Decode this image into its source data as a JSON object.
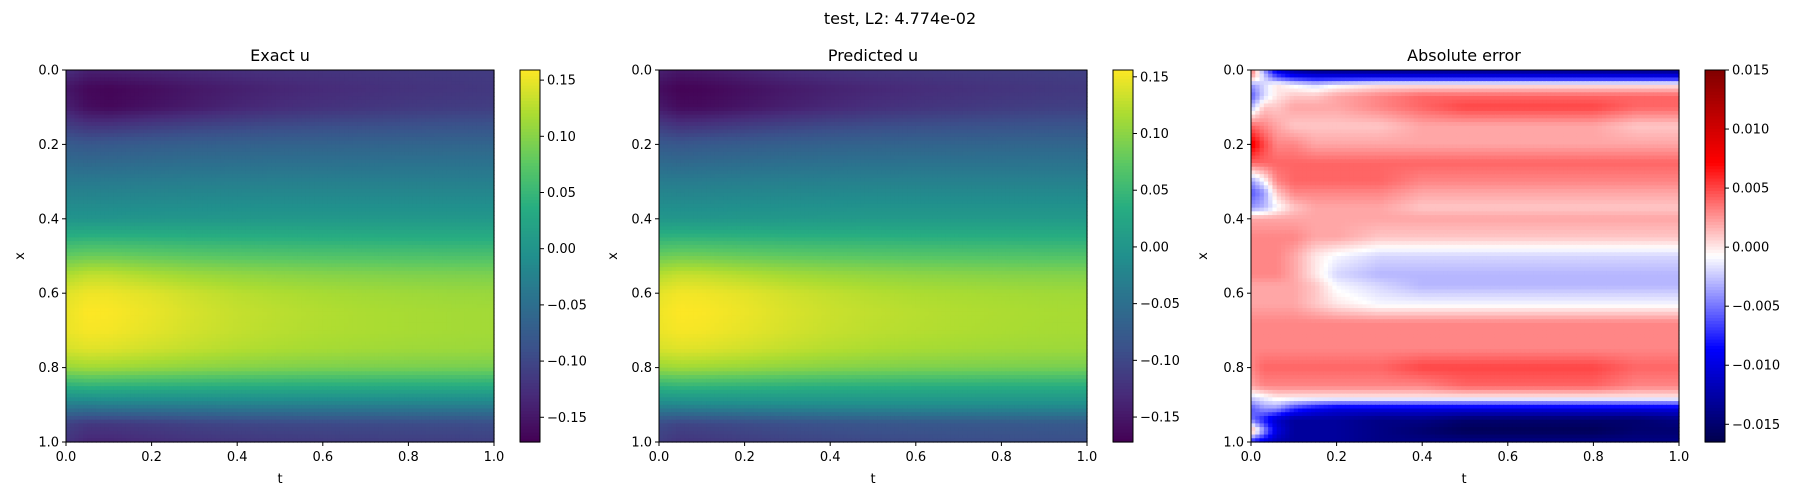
{
  "figure": {
    "suptitle": "test, L2: 4.774e-02"
  },
  "chart_data": [
    {
      "type": "heatmap",
      "title": "Exact u",
      "xlabel": "t",
      "ylabel": "x",
      "xlim": [
        0.0,
        1.0
      ],
      "ylim": [
        1.0,
        0.0
      ],
      "x_ticks": [
        "0.0",
        "0.2",
        "0.4",
        "0.6",
        "0.8",
        "1.0"
      ],
      "y_ticks": [
        "0.0",
        "0.2",
        "0.4",
        "0.6",
        "0.8",
        "1.0"
      ],
      "colormap": "viridis",
      "clim": [
        -0.172,
        0.159
      ],
      "colorbar_ticks": [
        0.15,
        0.1,
        0.05,
        0.0,
        -0.05,
        -0.1,
        -0.15
      ],
      "colorbar_tick_labels": [
        "0.15",
        "0.10",
        "0.05",
        "0.00",
        "−0.05",
        "−0.10",
        "−0.15"
      ],
      "x_sample": [
        0.0,
        0.05,
        0.1,
        0.2,
        0.3,
        0.4,
        0.5,
        0.6,
        0.7,
        0.8,
        0.9,
        1.0
      ],
      "y_sample": [
        0.0,
        0.05,
        0.1,
        0.15,
        0.2,
        0.3,
        0.4,
        0.5,
        0.55,
        0.6,
        0.65,
        0.7,
        0.75,
        0.8,
        0.85,
        0.9,
        0.95,
        1.0
      ],
      "z": [
        [
          -0.125,
          -0.14,
          -0.14,
          -0.135,
          -0.13,
          -0.125,
          -0.122,
          -0.12,
          -0.118,
          -0.116,
          -0.114,
          -0.112
        ],
        [
          -0.15,
          -0.165,
          -0.168,
          -0.16,
          -0.15,
          -0.142,
          -0.135,
          -0.13,
          -0.126,
          -0.122,
          -0.119,
          -0.116
        ],
        [
          -0.14,
          -0.16,
          -0.165,
          -0.155,
          -0.145,
          -0.135,
          -0.128,
          -0.123,
          -0.119,
          -0.115,
          -0.112,
          -0.11
        ],
        [
          -0.11,
          -0.12,
          -0.12,
          -0.112,
          -0.105,
          -0.1,
          -0.096,
          -0.093,
          -0.091,
          -0.089,
          -0.087,
          -0.086
        ],
        [
          -0.075,
          -0.08,
          -0.078,
          -0.074,
          -0.07,
          -0.068,
          -0.066,
          -0.065,
          -0.064,
          -0.063,
          -0.062,
          -0.062
        ],
        [
          -0.035,
          -0.035,
          -0.034,
          -0.032,
          -0.03,
          -0.029,
          -0.028,
          -0.028,
          -0.028,
          -0.028,
          -0.028,
          -0.028
        ],
        [
          0.0,
          0.0,
          0.0,
          0.002,
          0.003,
          0.004,
          0.005,
          0.005,
          0.005,
          0.005,
          0.005,
          0.005
        ],
        [
          0.08,
          0.085,
          0.085,
          0.08,
          0.075,
          0.072,
          0.07,
          0.068,
          0.067,
          0.066,
          0.065,
          0.065
        ],
        [
          0.12,
          0.13,
          0.13,
          0.12,
          0.112,
          0.107,
          0.103,
          0.1,
          0.098,
          0.096,
          0.095,
          0.094
        ],
        [
          0.145,
          0.152,
          0.152,
          0.145,
          0.135,
          0.127,
          0.122,
          0.118,
          0.115,
          0.113,
          0.111,
          0.11
        ],
        [
          0.15,
          0.159,
          0.158,
          0.15,
          0.14,
          0.132,
          0.127,
          0.123,
          0.12,
          0.118,
          0.116,
          0.115
        ],
        [
          0.15,
          0.156,
          0.155,
          0.147,
          0.138,
          0.131,
          0.126,
          0.122,
          0.12,
          0.118,
          0.116,
          0.115
        ],
        [
          0.14,
          0.145,
          0.144,
          0.137,
          0.13,
          0.124,
          0.12,
          0.117,
          0.115,
          0.113,
          0.112,
          0.111
        ],
        [
          0.11,
          0.115,
          0.114,
          0.109,
          0.104,
          0.1,
          0.097,
          0.095,
          0.094,
          0.093,
          0.092,
          0.091
        ],
        [
          0.04,
          0.045,
          0.044,
          0.042,
          0.04,
          0.038,
          0.037,
          0.036,
          0.036,
          0.035,
          0.035,
          0.035
        ],
        [
          -0.03,
          -0.03,
          -0.028,
          -0.028,
          -0.027,
          -0.026,
          -0.026,
          -0.026,
          -0.026,
          -0.026,
          -0.026,
          -0.026
        ],
        [
          -0.105,
          -0.115,
          -0.115,
          -0.11,
          -0.104,
          -0.1,
          -0.098,
          -0.096,
          -0.095,
          -0.094,
          -0.093,
          -0.092
        ],
        [
          -0.12,
          -0.135,
          -0.135,
          -0.128,
          -0.122,
          -0.118,
          -0.115,
          -0.113,
          -0.111,
          -0.11,
          -0.109,
          -0.108
        ]
      ]
    },
    {
      "type": "heatmap",
      "title": "Predicted u",
      "xlabel": "t",
      "ylabel": "x",
      "xlim": [
        0.0,
        1.0
      ],
      "ylim": [
        1.0,
        0.0
      ],
      "x_ticks": [
        "0.0",
        "0.2",
        "0.4",
        "0.6",
        "0.8",
        "1.0"
      ],
      "y_ticks": [
        "0.0",
        "0.2",
        "0.4",
        "0.6",
        "0.8",
        "1.0"
      ],
      "colormap": "viridis",
      "clim": [
        -0.172,
        0.156
      ],
      "colorbar_ticks": [
        0.15,
        0.1,
        0.05,
        0.0,
        -0.05,
        -0.1,
        -0.15
      ],
      "colorbar_tick_labels": [
        "0.15",
        "0.10",
        "0.05",
        "0.00",
        "−0.05",
        "−0.10",
        "−0.15"
      ],
      "x_sample": [
        0.0,
        0.05,
        0.1,
        0.2,
        0.3,
        0.4,
        0.5,
        0.6,
        0.7,
        0.8,
        0.9,
        1.0
      ],
      "y_sample": [
        0.0,
        0.05,
        0.1,
        0.15,
        0.2,
        0.3,
        0.4,
        0.5,
        0.55,
        0.6,
        0.65,
        0.7,
        0.75,
        0.8,
        0.85,
        0.9,
        0.95,
        1.0
      ],
      "z": [
        [
          -0.14,
          -0.15,
          -0.148,
          -0.138,
          -0.128,
          -0.122,
          -0.118,
          -0.116,
          -0.114,
          -0.112,
          -0.11,
          -0.108
        ],
        [
          -0.16,
          -0.17,
          -0.168,
          -0.158,
          -0.148,
          -0.14,
          -0.134,
          -0.129,
          -0.125,
          -0.121,
          -0.118,
          -0.115
        ],
        [
          -0.148,
          -0.162,
          -0.162,
          -0.152,
          -0.142,
          -0.133,
          -0.126,
          -0.121,
          -0.117,
          -0.113,
          -0.11,
          -0.108
        ],
        [
          -0.112,
          -0.122,
          -0.12,
          -0.112,
          -0.105,
          -0.099,
          -0.095,
          -0.092,
          -0.09,
          -0.088,
          -0.086,
          -0.085
        ],
        [
          -0.078,
          -0.082,
          -0.079,
          -0.075,
          -0.071,
          -0.068,
          -0.066,
          -0.065,
          -0.064,
          -0.063,
          -0.062,
          -0.062
        ],
        [
          -0.033,
          -0.034,
          -0.033,
          -0.031,
          -0.029,
          -0.028,
          -0.027,
          -0.027,
          -0.027,
          -0.027,
          -0.027,
          -0.027
        ],
        [
          0.002,
          0.001,
          0.001,
          0.003,
          0.004,
          0.005,
          0.006,
          0.006,
          0.006,
          0.006,
          0.006,
          0.006
        ],
        [
          0.082,
          0.086,
          0.085,
          0.08,
          0.076,
          0.073,
          0.071,
          0.069,
          0.068,
          0.067,
          0.066,
          0.066
        ],
        [
          0.122,
          0.13,
          0.129,
          0.121,
          0.113,
          0.108,
          0.104,
          0.101,
          0.099,
          0.097,
          0.096,
          0.095
        ],
        [
          0.145,
          0.151,
          0.15,
          0.144,
          0.135,
          0.128,
          0.122,
          0.118,
          0.116,
          0.114,
          0.112,
          0.111
        ],
        [
          0.15,
          0.156,
          0.155,
          0.148,
          0.139,
          0.132,
          0.127,
          0.123,
          0.12,
          0.118,
          0.116,
          0.115
        ],
        [
          0.148,
          0.153,
          0.152,
          0.145,
          0.137,
          0.13,
          0.125,
          0.122,
          0.119,
          0.117,
          0.115,
          0.114
        ],
        [
          0.138,
          0.142,
          0.141,
          0.135,
          0.128,
          0.122,
          0.118,
          0.115,
          0.113,
          0.111,
          0.11,
          0.109
        ],
        [
          0.108,
          0.112,
          0.111,
          0.107,
          0.102,
          0.098,
          0.095,
          0.093,
          0.092,
          0.091,
          0.09,
          0.089
        ],
        [
          0.042,
          0.046,
          0.045,
          0.043,
          0.041,
          0.039,
          0.038,
          0.037,
          0.037,
          0.036,
          0.036,
          0.036
        ],
        [
          -0.02,
          -0.018,
          -0.016,
          -0.014,
          -0.012,
          -0.011,
          -0.01,
          -0.01,
          -0.01,
          -0.01,
          -0.01,
          -0.01
        ],
        [
          -0.095,
          -0.102,
          -0.1,
          -0.095,
          -0.09,
          -0.086,
          -0.083,
          -0.081,
          -0.08,
          -0.079,
          -0.078,
          -0.078
        ],
        [
          -0.11,
          -0.12,
          -0.118,
          -0.112,
          -0.106,
          -0.102,
          -0.099,
          -0.097,
          -0.095,
          -0.094,
          -0.093,
          -0.092
        ]
      ]
    },
    {
      "type": "heatmap",
      "title": "Absolute error",
      "xlabel": "t",
      "ylabel": "x",
      "xlim": [
        0.0,
        1.0
      ],
      "ylim": [
        1.0,
        0.0
      ],
      "x_ticks": [
        "0.0",
        "0.2",
        "0.4",
        "0.6",
        "0.8",
        "1.0"
      ],
      "y_ticks": [
        "0.0",
        "0.2",
        "0.4",
        "0.6",
        "0.8",
        "1.0"
      ],
      "colormap": "seismic",
      "clim": [
        -0.0165,
        0.015
      ],
      "colorbar_ticks": [
        0.015,
        0.01,
        0.005,
        0.0,
        -0.005,
        -0.01,
        -0.015
      ],
      "colorbar_tick_labels": [
        "0.015",
        "0.010",
        "0.005",
        "0.000",
        "−0.005",
        "−0.010",
        "−0.015"
      ],
      "x_sample": [
        0.0,
        0.03,
        0.06,
        0.1,
        0.15,
        0.2,
        0.3,
        0.4,
        0.5,
        0.6,
        0.7,
        0.8,
        0.9,
        1.0
      ],
      "y_sample": [
        0.0,
        0.02,
        0.04,
        0.07,
        0.1,
        0.15,
        0.2,
        0.25,
        0.3,
        0.33,
        0.37,
        0.4,
        0.45,
        0.5,
        0.55,
        0.58,
        0.63,
        0.68,
        0.75,
        0.8,
        0.85,
        0.88,
        0.91,
        0.94,
        0.97,
        1.0
      ],
      "z": [
        [
          0.004,
          -0.004,
          -0.01,
          -0.013,
          -0.014,
          -0.014,
          -0.014,
          -0.014,
          -0.014,
          -0.014,
          -0.014,
          -0.014,
          -0.014,
          -0.014
        ],
        [
          0.002,
          -0.002,
          -0.006,
          -0.008,
          -0.009,
          -0.009,
          -0.009,
          -0.009,
          -0.009,
          -0.009,
          -0.009,
          -0.009,
          -0.009,
          -0.009
        ],
        [
          -0.004,
          -0.002,
          0.0,
          -0.001,
          -0.002,
          -0.001,
          0.0,
          0.0,
          0.0,
          0.0,
          0.0,
          0.0,
          0.0,
          0.0
        ],
        [
          -0.006,
          -0.002,
          0.0,
          0.001,
          0.001,
          0.002,
          0.003,
          0.004,
          0.004,
          0.004,
          0.004,
          0.004,
          0.004,
          0.004
        ],
        [
          -0.003,
          0.001,
          0.001,
          0.002,
          0.002,
          0.002,
          0.003,
          0.004,
          0.005,
          0.005,
          0.005,
          0.005,
          0.004,
          0.004
        ],
        [
          0.004,
          0.003,
          0.002,
          0.001,
          0.001,
          0.001,
          0.001,
          0.002,
          0.002,
          0.002,
          0.002,
          0.002,
          0.001,
          0.001
        ],
        [
          0.008,
          0.005,
          0.003,
          0.003,
          0.002,
          0.002,
          0.002,
          0.002,
          0.002,
          0.002,
          0.002,
          0.002,
          0.002,
          0.002
        ],
        [
          0.004,
          0.004,
          0.004,
          0.004,
          0.004,
          0.004,
          0.004,
          0.004,
          0.004,
          0.004,
          0.004,
          0.004,
          0.004,
          0.004
        ],
        [
          -0.004,
          -0.001,
          0.003,
          0.004,
          0.004,
          0.004,
          0.004,
          0.003,
          0.003,
          0.003,
          0.003,
          0.003,
          0.003,
          0.003
        ],
        [
          -0.006,
          -0.004,
          0.001,
          0.003,
          0.003,
          0.003,
          0.003,
          0.002,
          0.002,
          0.002,
          0.002,
          0.002,
          0.002,
          0.002
        ],
        [
          -0.004,
          -0.003,
          -0.001,
          0.001,
          0.002,
          0.002,
          0.002,
          0.001,
          0.001,
          0.001,
          0.001,
          0.001,
          0.001,
          0.001
        ],
        [
          0.002,
          0.002,
          0.002,
          0.002,
          0.002,
          0.002,
          0.002,
          0.002,
          0.002,
          0.002,
          0.002,
          0.002,
          0.002,
          0.002
        ],
        [
          0.003,
          0.003,
          0.003,
          0.003,
          0.002,
          0.002,
          0.001,
          0.001,
          0.001,
          0.001,
          0.001,
          0.001,
          0.001,
          0.001
        ],
        [
          0.003,
          0.003,
          0.003,
          0.002,
          0.0,
          -0.001,
          -0.002,
          -0.002,
          -0.002,
          -0.002,
          -0.002,
          -0.002,
          -0.002,
          -0.002
        ],
        [
          0.003,
          0.003,
          0.003,
          0.002,
          0.0,
          -0.002,
          -0.003,
          -0.003,
          -0.003,
          -0.003,
          -0.003,
          -0.003,
          -0.003,
          -0.003
        ],
        [
          0.002,
          0.002,
          0.002,
          0.002,
          0.001,
          -0.001,
          -0.002,
          -0.003,
          -0.003,
          -0.003,
          -0.003,
          -0.003,
          -0.003,
          -0.003
        ],
        [
          0.002,
          0.002,
          0.002,
          0.002,
          0.001,
          0.0,
          -0.001,
          -0.001,
          -0.001,
          -0.001,
          -0.001,
          -0.001,
          -0.001,
          -0.001
        ],
        [
          0.003,
          0.003,
          0.003,
          0.003,
          0.003,
          0.003,
          0.003,
          0.003,
          0.003,
          0.003,
          0.003,
          0.003,
          0.003,
          0.003
        ],
        [
          0.003,
          0.003,
          0.003,
          0.003,
          0.003,
          0.003,
          0.003,
          0.003,
          0.003,
          0.003,
          0.003,
          0.003,
          0.003,
          0.003
        ],
        [
          0.003,
          0.004,
          0.004,
          0.004,
          0.004,
          0.004,
          0.004,
          0.005,
          0.005,
          0.005,
          0.005,
          0.005,
          0.004,
          0.004
        ],
        [
          0.002,
          0.003,
          0.003,
          0.003,
          0.003,
          0.003,
          0.003,
          0.003,
          0.004,
          0.004,
          0.004,
          0.004,
          0.003,
          0.003
        ],
        [
          -0.002,
          -0.001,
          0.0,
          0.0,
          0.0,
          0.0,
          0.0,
          0.0,
          0.0,
          0.0,
          0.0,
          0.0,
          0.0,
          0.0
        ],
        [
          -0.006,
          -0.004,
          -0.004,
          -0.007,
          -0.009,
          -0.01,
          -0.01,
          -0.01,
          -0.01,
          -0.01,
          -0.01,
          -0.01,
          -0.01,
          -0.01
        ],
        [
          -0.005,
          -0.008,
          -0.011,
          -0.013,
          -0.013,
          -0.013,
          -0.014,
          -0.014,
          -0.015,
          -0.015,
          -0.015,
          -0.015,
          -0.015,
          -0.014
        ],
        [
          0.003,
          -0.004,
          -0.01,
          -0.013,
          -0.013,
          -0.013,
          -0.014,
          -0.015,
          -0.016,
          -0.016,
          -0.016,
          -0.016,
          -0.015,
          -0.015
        ],
        [
          -0.008,
          -0.01,
          -0.012,
          -0.013,
          -0.013,
          -0.013,
          -0.014,
          -0.014,
          -0.014,
          -0.014,
          -0.014,
          -0.014,
          -0.014,
          -0.014
        ]
      ]
    }
  ]
}
